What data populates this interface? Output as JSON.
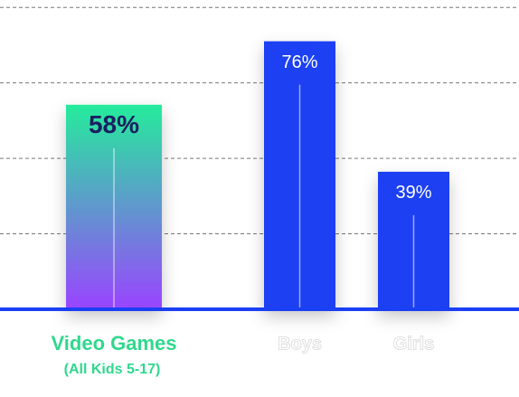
{
  "chart_data": {
    "type": "bar",
    "categories": [
      "Video Games",
      "Boys",
      "Girls"
    ],
    "subcaption": "(All Kids 5-17)",
    "values": [
      58,
      76,
      39
    ],
    "value_labels": [
      "58%",
      "76%",
      "39%"
    ],
    "colors": [
      [
        "#25eb9c",
        "#9a44ff"
      ],
      "#1b3ff2",
      "#1b3ff2"
    ],
    "ylim": [
      0,
      87.7
    ],
    "yticks": [
      21.4,
      42.8,
      64.2,
      85.6
    ],
    "grid": true
  }
}
